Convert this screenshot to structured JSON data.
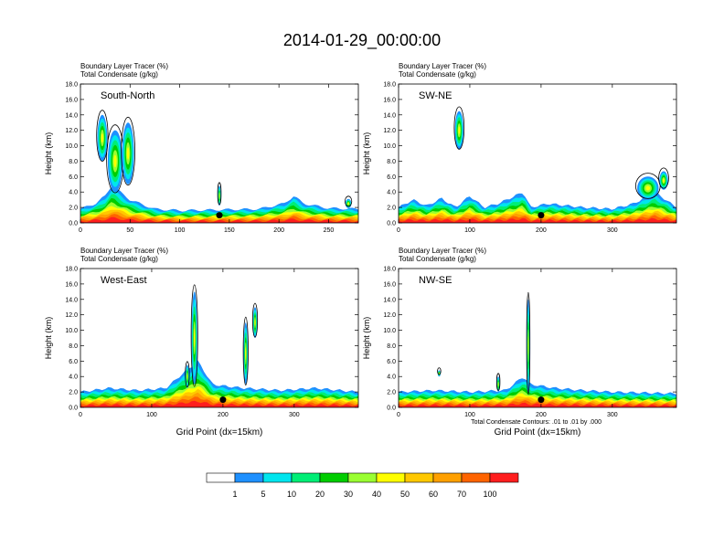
{
  "title": "2014-01-29_00:00:00",
  "panel_subtitle_line1": "Boundary Layer Tracer   (%)",
  "panel_subtitle_line2": "Total Condensate   (g/kg)",
  "ylabel": "Height (km)",
  "xlabel": "Grid Point (dx=15km)",
  "contour_note": "Total Condensate Contours: .01 to .01 by .000",
  "colorbar": {
    "labels": [
      "1",
      "5",
      "10",
      "20",
      "30",
      "40",
      "50",
      "60",
      "70",
      "100"
    ],
    "colors": [
      "#ffffff",
      "#1e90ff",
      "#00e5ee",
      "#00ee76",
      "#00cd00",
      "#9aff32",
      "#ffff00",
      "#ffc800",
      "#ffa000",
      "#ff6400",
      "#ff1e1e"
    ]
  },
  "chart_data": [
    {
      "type": "contour",
      "name": "South-North",
      "xlim": [
        0,
        280
      ],
      "ylim": [
        0,
        18
      ],
      "xticks": [
        0,
        50,
        100,
        150,
        200,
        250
      ],
      "yticks": [
        0.0,
        2.0,
        4.0,
        6.0,
        8.0,
        10.0,
        12.0,
        14.0,
        16.0,
        18.0
      ],
      "show_xlabel": false,
      "bl_top": [
        [
          0,
          1.8
        ],
        [
          15,
          2.5
        ],
        [
          25,
          3.5
        ],
        [
          32,
          5
        ],
        [
          40,
          4
        ],
        [
          50,
          3
        ],
        [
          60,
          2.5
        ],
        [
          75,
          1.8
        ],
        [
          100,
          1.6
        ],
        [
          140,
          1.7
        ],
        [
          180,
          1.8
        ],
        [
          205,
          2.5
        ],
        [
          215,
          3.5
        ],
        [
          225,
          2.5
        ],
        [
          250,
          1.9
        ],
        [
          280,
          1.8
        ]
      ],
      "plumes": [
        [
          35,
          8,
          15,
          4
        ],
        [
          48,
          9,
          12,
          4
        ],
        [
          22,
          11,
          10,
          3
        ],
        [
          140,
          3.5,
          3,
          1.3
        ],
        [
          270,
          2.5,
          6,
          0.6
        ]
      ],
      "marker": [
        140,
        1.0
      ]
    },
    {
      "type": "contour",
      "name": "SW-NE",
      "xlim": [
        0,
        390
      ],
      "ylim": [
        0,
        18
      ],
      "xticks": [
        0,
        100,
        200,
        300
      ],
      "yticks": [
        0.0,
        2.0,
        4.0,
        6.0,
        8.0,
        10.0,
        12.0,
        14.0,
        16.0,
        18.0
      ],
      "show_xlabel": false,
      "bl_top": [
        [
          0,
          2
        ],
        [
          20,
          3
        ],
        [
          40,
          2.2
        ],
        [
          60,
          3.2
        ],
        [
          80,
          2
        ],
        [
          100,
          3.5
        ],
        [
          120,
          2
        ],
        [
          140,
          2.5
        ],
        [
          175,
          4
        ],
        [
          185,
          2
        ],
        [
          210,
          2.5
        ],
        [
          260,
          2
        ],
        [
          300,
          1.8
        ],
        [
          330,
          2.5
        ],
        [
          360,
          4
        ],
        [
          390,
          2
        ]
      ],
      "plumes": [
        [
          85,
          12,
          12,
          2.5
        ],
        [
          350,
          4.5,
          30,
          1.5
        ],
        [
          372,
          5.5,
          12,
          1.2
        ]
      ],
      "marker": [
        200,
        1.0
      ]
    },
    {
      "type": "contour",
      "name": "West-East",
      "xlim": [
        0,
        390
      ],
      "ylim": [
        0,
        18
      ],
      "xticks": [
        0,
        100,
        200,
        300
      ],
      "yticks": [
        0.0,
        2.0,
        4.0,
        6.0,
        8.0,
        10.0,
        12.0,
        14.0,
        16.0,
        18.0
      ],
      "show_xlabel": true,
      "bl_top": [
        [
          0,
          2
        ],
        [
          40,
          2.5
        ],
        [
          80,
          2.2
        ],
        [
          120,
          2.5
        ],
        [
          145,
          4.5
        ],
        [
          165,
          6
        ],
        [
          185,
          3
        ],
        [
          200,
          2.8
        ],
        [
          230,
          2.5
        ],
        [
          280,
          2.2
        ],
        [
          330,
          2.5
        ],
        [
          390,
          2
        ]
      ],
      "plumes": [
        [
          160,
          9,
          8,
          6
        ],
        [
          150,
          4,
          5,
          1.5
        ],
        [
          232,
          7,
          6,
          4
        ],
        [
          245,
          11,
          6,
          2
        ]
      ],
      "marker": [
        200,
        1.0
      ]
    },
    {
      "type": "contour",
      "name": "NW-SE",
      "xlim": [
        0,
        390
      ],
      "ylim": [
        0,
        18
      ],
      "xticks": [
        0,
        100,
        200,
        300
      ],
      "yticks": [
        0.0,
        2.0,
        4.0,
        6.0,
        8.0,
        10.0,
        12.0,
        14.0,
        16.0,
        18.0
      ],
      "show_xlabel": true,
      "bl_top": [
        [
          0,
          2
        ],
        [
          50,
          2.2
        ],
        [
          100,
          2
        ],
        [
          150,
          2.2
        ],
        [
          175,
          4
        ],
        [
          185,
          3
        ],
        [
          220,
          2.5
        ],
        [
          260,
          2.2
        ],
        [
          300,
          2
        ],
        [
          390,
          1.8
        ]
      ],
      "plumes": [
        [
          182,
          8,
          4,
          6
        ],
        [
          57,
          4.4,
          4,
          0.4
        ],
        [
          140,
          3,
          4,
          1
        ]
      ],
      "marker": [
        200,
        1.0
      ]
    }
  ]
}
